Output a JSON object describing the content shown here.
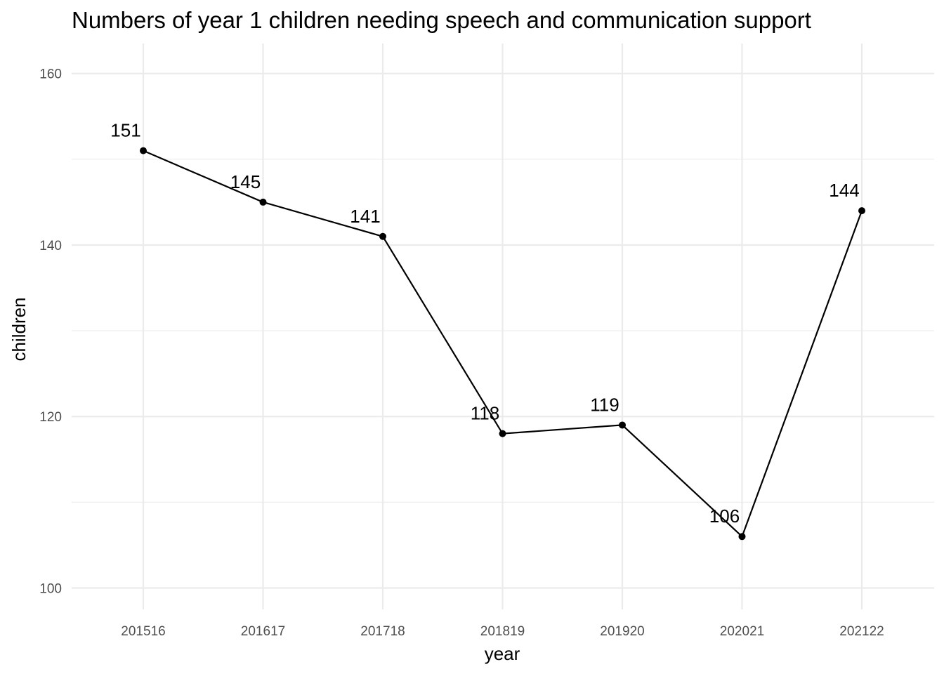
{
  "chart_data": {
    "type": "line",
    "title": "Numbers of year 1 children needing speech and communication support",
    "xlabel": "year",
    "ylabel": "children",
    "categories": [
      "201516",
      "201617",
      "201718",
      "201819",
      "201920",
      "202021",
      "202122"
    ],
    "values": [
      151,
      145,
      141,
      118,
      119,
      106,
      144
    ],
    "data_labels": [
      "151",
      "145",
      "141",
      "118",
      "119",
      "106",
      "144"
    ],
    "ylim": [
      97.5,
      163.5
    ],
    "yticks": [
      100,
      120,
      140,
      160
    ],
    "ytick_labels": [
      "100",
      "120",
      "140",
      "160"
    ],
    "yminor": [
      110,
      130,
      150
    ],
    "grid": true,
    "legend": "none",
    "line_color": "#000000",
    "grid_color": "#ebebeb"
  }
}
